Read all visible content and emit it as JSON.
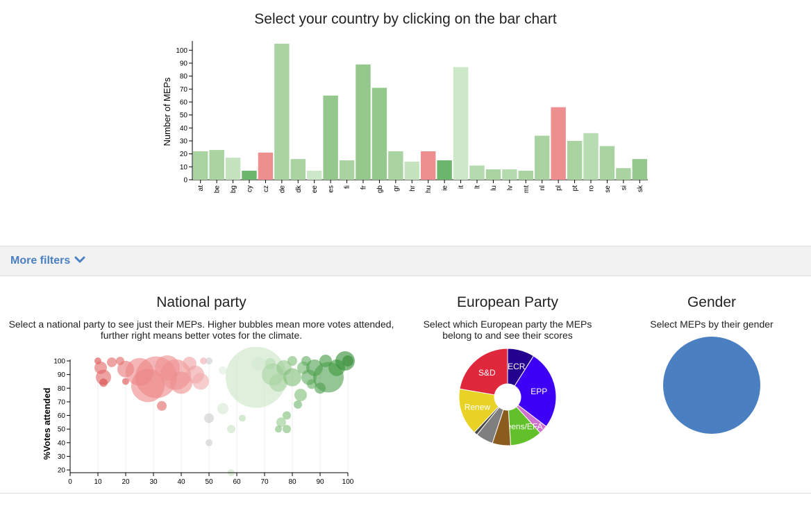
{
  "header": {
    "title": "Select your country by clicking on the bar chart"
  },
  "filters": {
    "label": "More filters"
  },
  "panels": {
    "national": {
      "title": "National party",
      "subtitle_line1": "Select a national party to see just their MEPs. Higher bubbles mean more votes attended,",
      "subtitle_line2": "further right means better votes for the climate."
    },
    "european": {
      "title": "European Party",
      "subtitle_line1": "Select which European party the MEPs",
      "subtitle_line2": "belong to and see their scores"
    },
    "gender": {
      "title": "Gender",
      "subtitle_line1": "Select MEPs by their gender"
    }
  },
  "chart_data": [
    {
      "type": "bar",
      "ylabel": "Number of MEPs",
      "ylim": [
        0,
        105
      ],
      "yticks": [
        0,
        10,
        20,
        30,
        40,
        50,
        60,
        70,
        80,
        90,
        100
      ],
      "categories": [
        "at",
        "be",
        "bg",
        "cy",
        "cz",
        "de",
        "dk",
        "ee",
        "es",
        "fi",
        "fr",
        "gb",
        "gr",
        "hr",
        "hu",
        "ie",
        "it",
        "lt",
        "lu",
        "lv",
        "mt",
        "nl",
        "pl",
        "pt",
        "ro",
        "se",
        "si",
        "sk"
      ],
      "values": [
        22,
        23,
        17,
        7,
        21,
        105,
        16,
        7,
        65,
        15,
        89,
        71,
        22,
        14,
        22,
        15,
        87,
        11,
        8,
        8,
        7,
        34,
        56,
        30,
        36,
        26,
        9,
        16
      ],
      "colors": [
        "#a9d4a1",
        "#a9d4a1",
        "#c5e3bf",
        "#6db66d",
        "#ee8f8f",
        "#a9d4a1",
        "#a9d4a1",
        "#cde8c8",
        "#94c88c",
        "#a9d4a1",
        "#94c88c",
        "#94c88c",
        "#a9d4a1",
        "#c5e3bf",
        "#ee8f8f",
        "#6db66d",
        "#cde8c8",
        "#b5dab0",
        "#a9d4a1",
        "#b5dab0",
        "#a9d4a1",
        "#a9d4a1",
        "#ee8f8f",
        "#a9d4a1",
        "#b8dcb2",
        "#a9d4a1",
        "#a9d4a1",
        "#94c88c"
      ]
    },
    {
      "type": "scatter",
      "ylabel": "%Votes attended",
      "xlim": [
        0,
        100
      ],
      "ylim": [
        18,
        100
      ],
      "xticks": [
        0,
        10,
        20,
        30,
        40,
        50,
        60,
        70,
        80,
        90,
        100
      ],
      "yticks": [
        20,
        30,
        40,
        50,
        60,
        70,
        80,
        90,
        100
      ],
      "points": [
        {
          "x": 10,
          "y": 100,
          "r": 5,
          "c": "#d94a4a"
        },
        {
          "x": 11,
          "y": 95,
          "r": 9,
          "c": "#e36565"
        },
        {
          "x": 12,
          "y": 88,
          "r": 11,
          "c": "#e36565"
        },
        {
          "x": 12,
          "y": 84,
          "r": 6,
          "c": "#d94a4a"
        },
        {
          "x": 15,
          "y": 99,
          "r": 7,
          "c": "#e36565"
        },
        {
          "x": 18,
          "y": 100,
          "r": 6,
          "c": "#e36565"
        },
        {
          "x": 20,
          "y": 94,
          "r": 12,
          "c": "#e87777"
        },
        {
          "x": 20,
          "y": 85,
          "r": 5,
          "c": "#d94a4a"
        },
        {
          "x": 25,
          "y": 92,
          "r": 20,
          "c": "#ec8585"
        },
        {
          "x": 28,
          "y": 82,
          "r": 24,
          "c": "#ec8585"
        },
        {
          "x": 31,
          "y": 88,
          "r": 30,
          "c": "#ec8585"
        },
        {
          "x": 33,
          "y": 67,
          "r": 7,
          "c": "#e36565"
        },
        {
          "x": 35,
          "y": 95,
          "r": 18,
          "c": "#ee9090"
        },
        {
          "x": 38,
          "y": 90,
          "r": 22,
          "c": "#ee9090"
        },
        {
          "x": 40,
          "y": 84,
          "r": 16,
          "c": "#ee9090"
        },
        {
          "x": 43,
          "y": 98,
          "r": 10,
          "c": "#f0a0a0"
        },
        {
          "x": 45,
          "y": 90,
          "r": 13,
          "c": "#f0a0a0"
        },
        {
          "x": 47,
          "y": 85,
          "r": 12,
          "c": "#f2aaaa"
        },
        {
          "x": 48,
          "y": 100,
          "r": 5,
          "c": "#f2aaaa"
        },
        {
          "x": 50,
          "y": 100,
          "r": 5,
          "c": "#cccccc"
        },
        {
          "x": 50,
          "y": 58,
          "r": 7,
          "c": "#cccccc"
        },
        {
          "x": 50,
          "y": 40,
          "r": 5,
          "c": "#cccccc"
        },
        {
          "x": 55,
          "y": 93,
          "r": 6,
          "c": "#ddeedd"
        },
        {
          "x": 55,
          "y": 65,
          "r": 8,
          "c": "#d3ead0"
        },
        {
          "x": 58,
          "y": 50,
          "r": 6,
          "c": "#c7e4c2"
        },
        {
          "x": 58,
          "y": 18,
          "r": 5,
          "c": "#c7e4c2"
        },
        {
          "x": 62,
          "y": 58,
          "r": 5,
          "c": "#b5dab0"
        },
        {
          "x": 67,
          "y": 88,
          "r": 44,
          "c": "#c9e4c4"
        },
        {
          "x": 72,
          "y": 98,
          "r": 8,
          "c": "#b5dab0"
        },
        {
          "x": 73,
          "y": 90,
          "r": 16,
          "c": "#a9d4a1"
        },
        {
          "x": 75,
          "y": 84,
          "r": 13,
          "c": "#a9d4a1"
        },
        {
          "x": 76,
          "y": 55,
          "r": 7,
          "c": "#94c88c"
        },
        {
          "x": 77,
          "y": 95,
          "r": 11,
          "c": "#94c88c"
        },
        {
          "x": 78,
          "y": 60,
          "r": 6,
          "c": "#7dbd74"
        },
        {
          "x": 80,
          "y": 100,
          "r": 7,
          "c": "#7dbd74"
        },
        {
          "x": 80,
          "y": 88,
          "r": 13,
          "c": "#7dbd74"
        },
        {
          "x": 83,
          "y": 75,
          "r": 9,
          "c": "#7dbd74"
        },
        {
          "x": 84,
          "y": 95,
          "r": 9,
          "c": "#6db66d"
        },
        {
          "x": 85,
          "y": 100,
          "r": 7,
          "c": "#5fab5f"
        },
        {
          "x": 86,
          "y": 88,
          "r": 11,
          "c": "#5fab5f"
        },
        {
          "x": 87,
          "y": 83,
          "r": 7,
          "c": "#5fab5f"
        },
        {
          "x": 88,
          "y": 95,
          "r": 12,
          "c": "#4c9e4c"
        },
        {
          "x": 90,
          "y": 80,
          "r": 8,
          "c": "#4c9e4c"
        },
        {
          "x": 92,
          "y": 100,
          "r": 9,
          "c": "#3d9a3d"
        },
        {
          "x": 93,
          "y": 88,
          "r": 22,
          "c": "#4c9e4c"
        },
        {
          "x": 96,
          "y": 95,
          "r": 12,
          "c": "#3d9a3d"
        },
        {
          "x": 99,
          "y": 100,
          "r": 14,
          "c": "#2f8a2f"
        },
        {
          "x": 100,
          "y": 100,
          "r": 8,
          "c": "#2f8a2f"
        },
        {
          "x": 78,
          "y": 50,
          "r": 6,
          "c": "#7dbd74"
        },
        {
          "x": 75,
          "y": 50,
          "r": 5,
          "c": "#7dbd74"
        },
        {
          "x": 82,
          "y": 68,
          "r": 6,
          "c": "#6db66d"
        },
        {
          "x": 68,
          "y": 98,
          "r": 10,
          "c": "#d3ead0"
        }
      ]
    },
    {
      "type": "pie",
      "slices": [
        {
          "label": "ECR",
          "value": 62,
          "color": "#23008e"
        },
        {
          "label": "EPP",
          "value": 182,
          "color": "#3d00f5"
        },
        {
          "label": "",
          "value": 20,
          "color": "#d070d0"
        },
        {
          "label": "Greens/EFA",
          "value": 74,
          "color": "#62c02a"
        },
        {
          "label": "",
          "value": 42,
          "color": "#8a5c1e"
        },
        {
          "label": "",
          "value": 40,
          "color": "#7f7f7f"
        },
        {
          "label": "",
          "value": 8,
          "color": "#4a4a4a"
        },
        {
          "label": "Renew",
          "value": 108,
          "color": "#e8d226"
        },
        {
          "label": "S&D",
          "value": 154,
          "color": "#e0283c"
        }
      ]
    },
    {
      "type": "pie",
      "slices": [
        {
          "label": "",
          "value": 1,
          "color": "#4a7fc1"
        }
      ]
    }
  ]
}
